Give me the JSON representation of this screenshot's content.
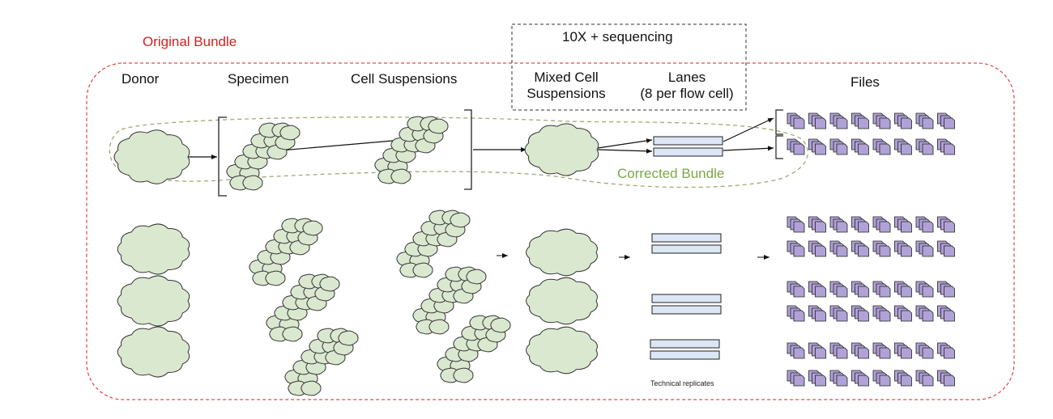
{
  "labels": {
    "original_bundle": "Original Bundle",
    "corrected_bundle": "Corrected Bundle",
    "sequencing_box": "10X + sequencing",
    "donor": "Donor",
    "specimen": "Specimen",
    "cell_suspensions": "Cell Suspensions",
    "mixed_line1": "Mixed Cell",
    "mixed_line2": "Suspensions",
    "lanes_line1": "Lanes",
    "lanes_line2": "(8 per flow cell)",
    "files": "Files",
    "technical_replicates": "Technical replicates"
  },
  "colors": {
    "cloud_fill": "#dbe8d0",
    "cloud_stroke": "#333333",
    "lane_fill": "#dce6f5",
    "file_fill": "#b0a2d6",
    "original_bundle": "#d42020",
    "corrected_bundle": "#7aa84a",
    "sequencing_box": "#333333"
  },
  "icons": [
    "cloud-icon",
    "cloud-cluster-icon",
    "lane-bar-icon",
    "file-stack-icon",
    "arrow-icon"
  ]
}
